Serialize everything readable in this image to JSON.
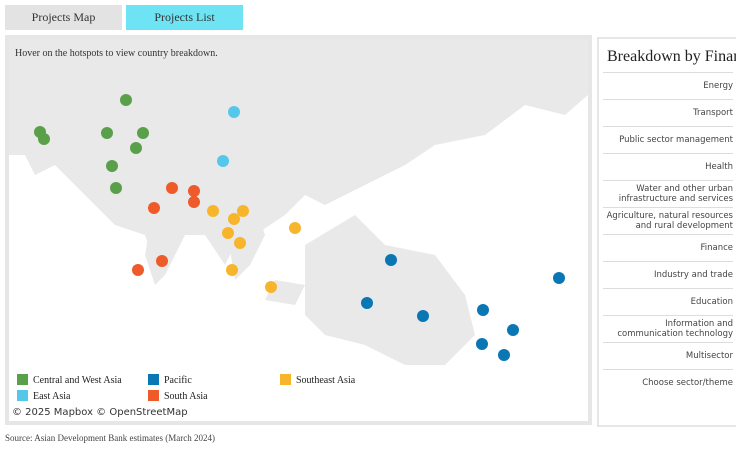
{
  "tabs": [
    "Projects Map",
    "Projects List"
  ],
  "map": {
    "hint": "Hover on the hotspots to view country breakdown.",
    "legend": [
      "Central and West Asia",
      "East Asia",
      "Pacific",
      "South Asia",
      "Southeast Asia"
    ],
    "attribution": "© 2025 Mapbox © OpenStreetMap"
  },
  "sidebar": {
    "title": "Breakdown by Financing",
    "items": [
      "Energy",
      "Transport",
      "Public sector management",
      "Health",
      "Water and other urban infrastructure and services",
      "Agriculture, natural resources and rural development",
      "Finance",
      "Industry and trade",
      "Education",
      "Information and communication technology",
      "Multisector",
      "Choose sector/theme"
    ]
  },
  "source": "Source: Asian Development Bank estimates (March 2024)"
}
